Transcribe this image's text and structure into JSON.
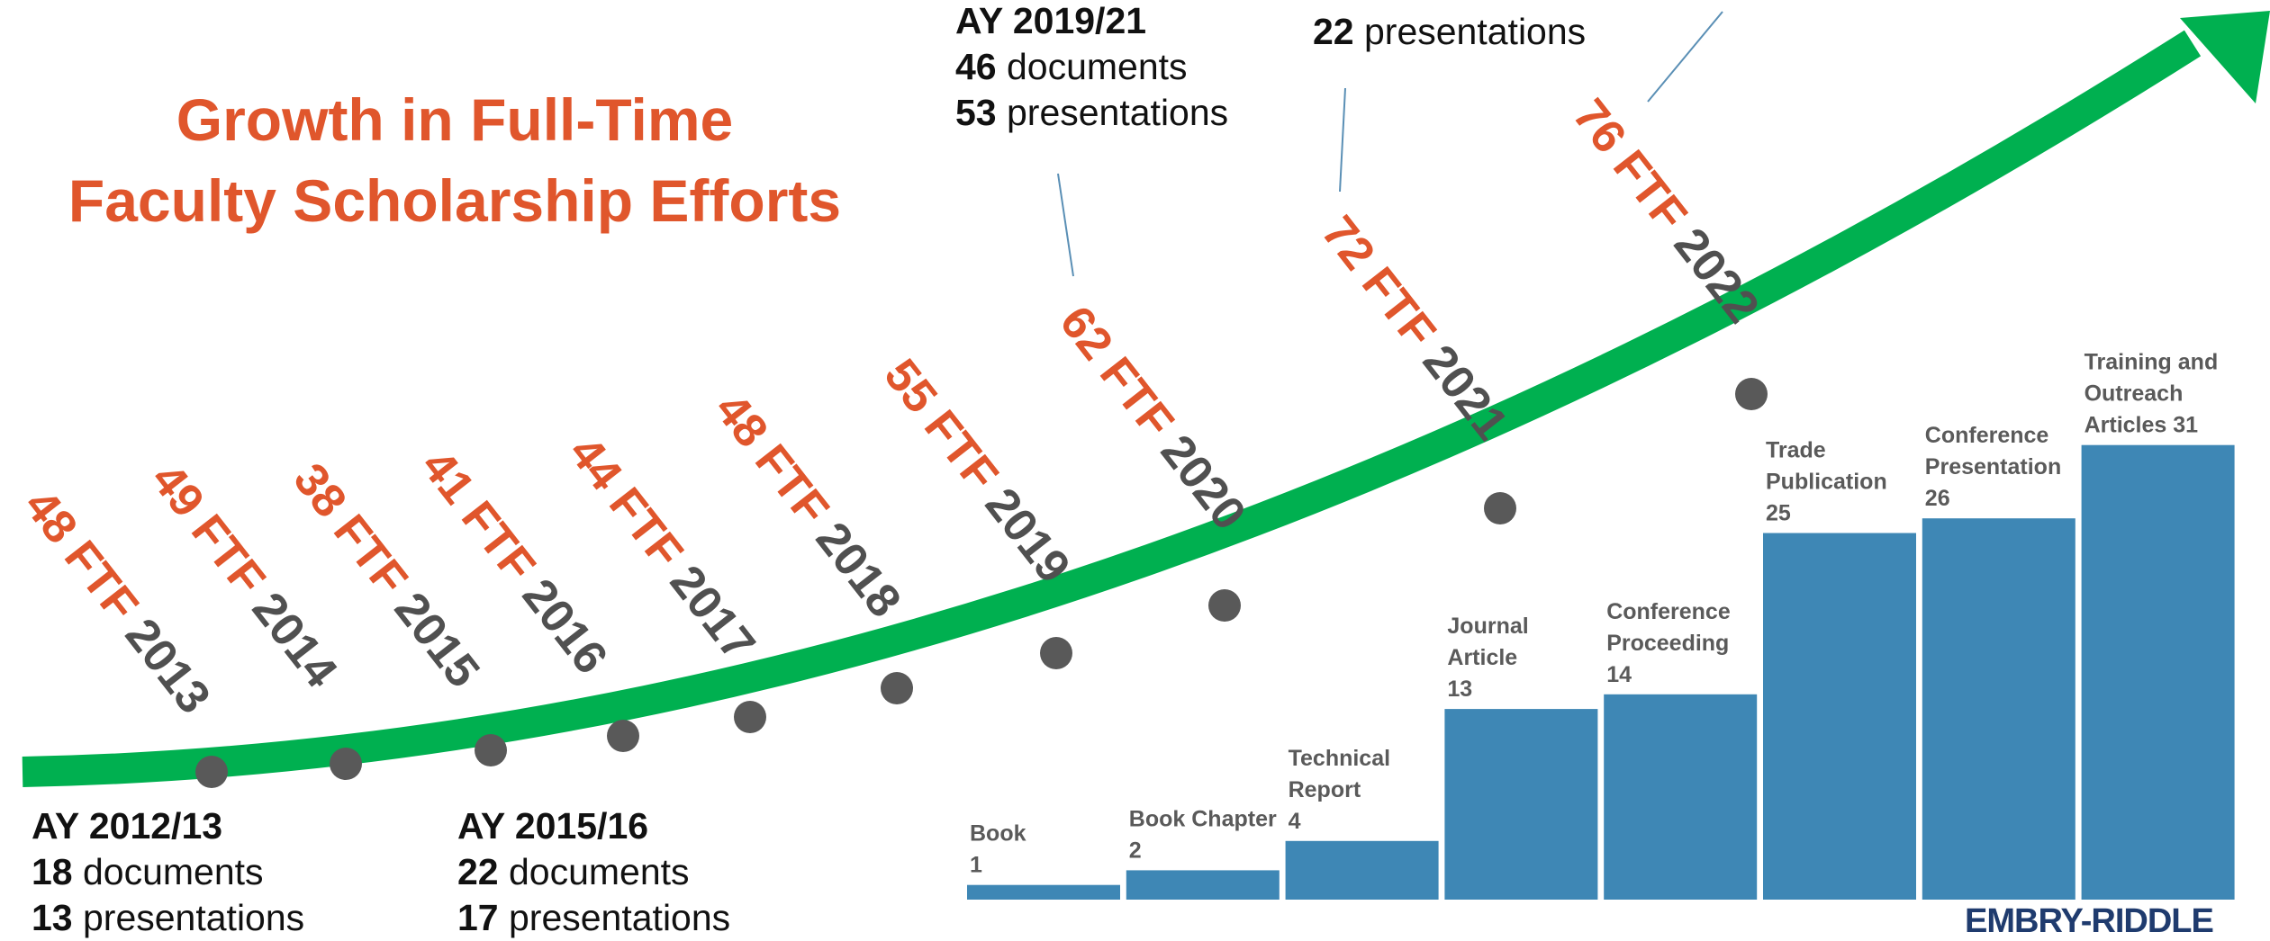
{
  "title": {
    "line1": "Growth in Full-Time",
    "line2": "Faculty Scholarship Efforts"
  },
  "timeline": [
    {
      "ftf": "48 FTF",
      "year": "2013"
    },
    {
      "ftf": "49 FTF",
      "year": "2014"
    },
    {
      "ftf": "38 FTF",
      "year": "2015"
    },
    {
      "ftf": "41 FTF",
      "year": "2016"
    },
    {
      "ftf": "44 FTF",
      "year": "2017"
    },
    {
      "ftf": "48 FTF",
      "year": "2018"
    },
    {
      "ftf": "55 FTF",
      "year": "2019"
    },
    {
      "ftf": "62 FTF",
      "year": "2020"
    },
    {
      "ftf": "72 FTF",
      "year": "2021"
    },
    {
      "ftf": "76 FTF",
      "year": "2022"
    }
  ],
  "year_blocks": [
    {
      "ay": "AY 2012/13",
      "docs_num": "18",
      "docs_word": " documents",
      "pres_num": "13",
      "pres_word": " presentations"
    },
    {
      "ay": "AY 2015/16",
      "docs_num": "22",
      "docs_word": " documents",
      "pres_num": "17",
      "pres_word": " presentations"
    },
    {
      "ay": "AY 2019/21",
      "docs_num": "46",
      "docs_word": " documents",
      "pres_num": "53",
      "pres_word": " presentations"
    },
    {
      "pres_num": "22",
      "pres_word": " presentations"
    }
  ],
  "chart_data": {
    "type": "bar",
    "categories": [
      [
        "Book",
        "1"
      ],
      [
        "Book Chapter",
        "2"
      ],
      [
        "Technical",
        "Report",
        "4"
      ],
      [
        "Journal",
        "Article",
        "13"
      ],
      [
        "Conference",
        "Proceeding",
        "14"
      ],
      [
        "Trade",
        "Publication",
        "25"
      ],
      [
        "Conference",
        "Presentation",
        "26"
      ],
      [
        "Training and",
        "Outreach",
        "Articles 31"
      ]
    ],
    "values": [
      1,
      2,
      4,
      13,
      14,
      25,
      26,
      31
    ],
    "bar_color": "#3e87b5"
  },
  "colors": {
    "accent": "#e0562c",
    "curve": "#00b050",
    "dot": "#595959",
    "year_text": "#505050",
    "leader": "#5a8fb5"
  },
  "logo": "EMBRY-RIDDLE"
}
